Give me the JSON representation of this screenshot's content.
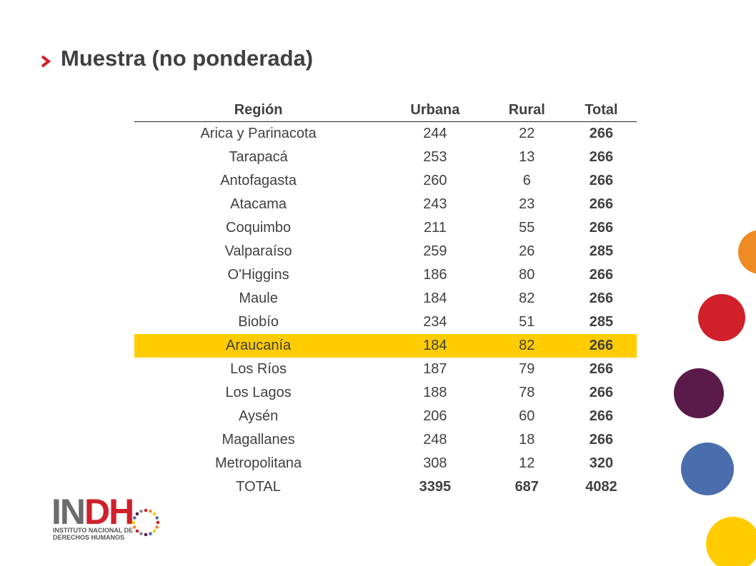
{
  "title": "Muestra (no ponderada)",
  "table": {
    "header": [
      "Región",
      "Urbana",
      "Rural",
      "Total"
    ],
    "rows": [
      [
        "Arica y Parinacota",
        "244",
        "22",
        "266"
      ],
      [
        "Tarapacá",
        "253",
        "13",
        "266"
      ],
      [
        "Antofagasta",
        "260",
        "6",
        "266"
      ],
      [
        "Atacama",
        "243",
        "23",
        "266"
      ],
      [
        "Coquimbo",
        "211",
        "55",
        "266"
      ],
      [
        "Valparaíso",
        "259",
        "26",
        "285"
      ],
      [
        "O'Higgins",
        "186",
        "80",
        "266"
      ],
      [
        "Maule",
        "184",
        "82",
        "266"
      ],
      [
        "Biobío",
        "234",
        "51",
        "285"
      ],
      [
        "Araucanía",
        "184",
        "82",
        "266"
      ],
      [
        "Los Ríos",
        "187",
        "79",
        "266"
      ],
      [
        "Los Lagos",
        "188",
        "78",
        "266"
      ],
      [
        "Aysén",
        "206",
        "60",
        "266"
      ],
      [
        "Magallanes",
        "248",
        "18",
        "266"
      ],
      [
        "Metropolitana",
        "308",
        "12",
        "320"
      ],
      [
        "TOTAL",
        "3395",
        "687",
        "4082"
      ]
    ]
  },
  "logo": {
    "name_gray": "IN",
    "name_red": "DH",
    "line1": "INSTITUTO NACIONAL DE",
    "line2": "DERECHOS HUMANOS"
  }
}
